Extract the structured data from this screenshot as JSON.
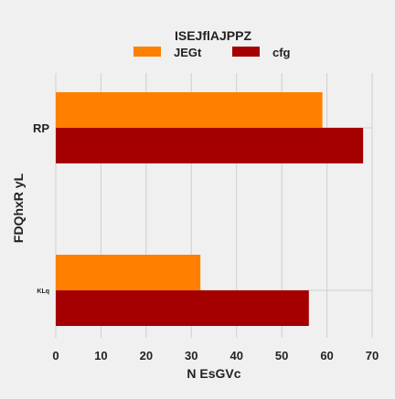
{
  "chart_data": {
    "type": "bar",
    "orientation": "horizontal",
    "legend_title": "ISEJflAJPPZ",
    "legend_placement": "top-center",
    "categories": [
      "RP",
      "KLq"
    ],
    "series": [
      {
        "name": "JEGt",
        "color": "#ff7f00",
        "values": [
          59,
          32
        ]
      },
      {
        "name": "cfg",
        "color": "#a50000",
        "values": [
          68,
          56
        ]
      }
    ],
    "xlabel": "N EsGVc",
    "ylabel": "FDQhxR  yL",
    "xlim": [
      0,
      70
    ],
    "xticks": [
      "0",
      "10",
      "20",
      "30",
      "40",
      "50",
      "60",
      "70"
    ],
    "grid": true,
    "background": "#f0f0f0",
    "grid_color": "#cfcfcf"
  }
}
